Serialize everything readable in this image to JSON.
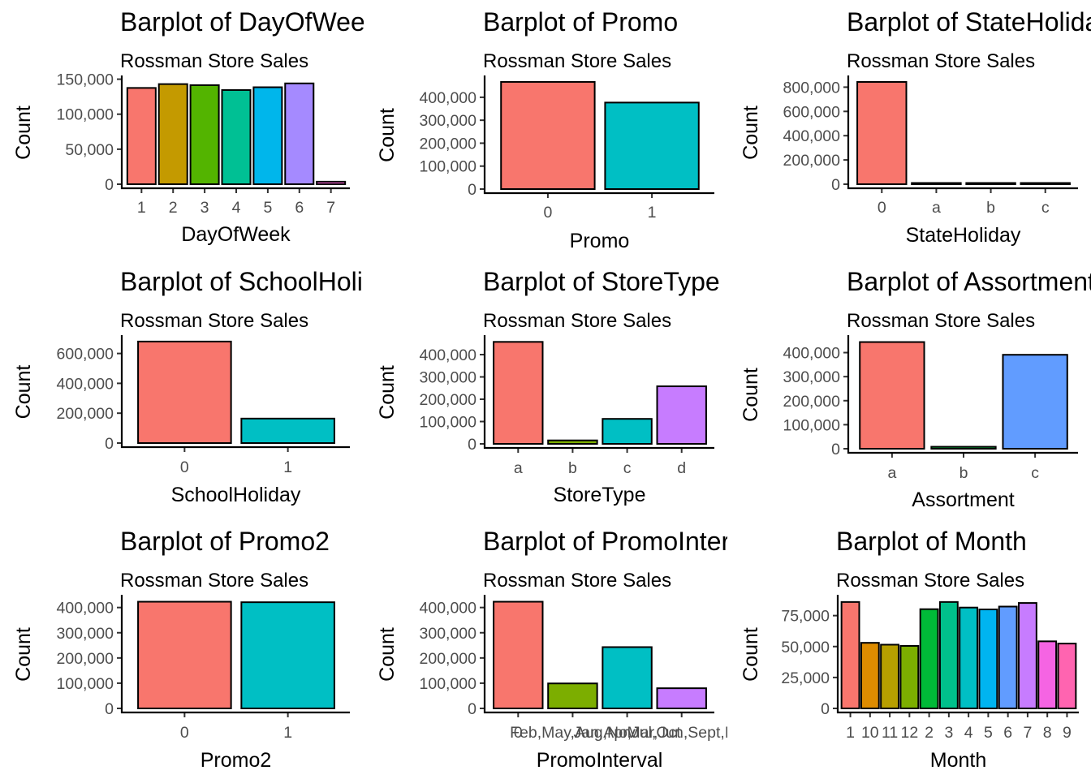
{
  "chart_data": [
    {
      "type": "bar",
      "title": "Barplot of DayOfWeek",
      "subtitle": "Rossman Store Sales",
      "xlabel": "DayOfWeek",
      "ylabel": "Count",
      "categories": [
        "1",
        "2",
        "3",
        "4",
        "5",
        "6",
        "7"
      ],
      "values": [
        137500,
        143000,
        141500,
        134500,
        138500,
        144000,
        3600
      ],
      "ylim": [
        0,
        153000
      ],
      "yticks": [
        0,
        50000,
        100000,
        150000
      ],
      "colors": [
        "#F8766D",
        "#C49A00",
        "#53B400",
        "#00C094",
        "#00B6EB",
        "#A58AFF",
        "#FB61D7"
      ],
      "grid": false,
      "legend": "none"
    },
    {
      "type": "bar",
      "title": "Barplot of Promo",
      "subtitle": "Rossman Store Sales",
      "xlabel": "Promo",
      "ylabel": "Count",
      "categories": [
        "0",
        "1"
      ],
      "values": [
        467000,
        377000
      ],
      "ylim": [
        0,
        488000
      ],
      "yticks": [
        0,
        100000,
        200000,
        300000,
        400000
      ],
      "colors": [
        "#F8766D",
        "#00BFC4"
      ],
      "grid": false,
      "legend": "none"
    },
    {
      "type": "bar",
      "title": "Barplot of StateHoliday",
      "subtitle": "Rossman Store Sales",
      "xlabel": "StateHoliday",
      "ylabel": "Count",
      "categories": [
        "0",
        "a",
        "b",
        "c"
      ],
      "values": [
        843000,
        700,
        150,
        70
      ],
      "ylim": [
        0,
        883000
      ],
      "yticks": [
        0,
        200000,
        400000,
        600000,
        800000
      ],
      "colors": [
        "#F8766D",
        "#7CAE00",
        "#00BFC4",
        "#C77CFF"
      ],
      "grid": false,
      "legend": "none"
    },
    {
      "type": "bar",
      "title": "Barplot of SchoolHoliday",
      "subtitle": "Rossman Store Sales",
      "xlabel": "SchoolHoliday",
      "ylabel": "Count",
      "categories": [
        "0",
        "1"
      ],
      "values": [
        680000,
        164000
      ],
      "ylim": [
        0,
        712000
      ],
      "yticks": [
        0,
        200000,
        400000,
        600000
      ],
      "colors": [
        "#F8766D",
        "#00BFC4"
      ],
      "grid": false,
      "legend": "none"
    },
    {
      "type": "bar",
      "title": "Barplot of StoreType",
      "subtitle": "Rossman Store Sales",
      "xlabel": "StoreType",
      "ylabel": "Count",
      "categories": [
        "a",
        "b",
        "c",
        "d"
      ],
      "values": [
        457000,
        15600,
        112000,
        258000
      ],
      "ylim": [
        0,
        480000
      ],
      "yticks": [
        0,
        100000,
        200000,
        300000,
        400000
      ],
      "colors": [
        "#F8766D",
        "#7CAE00",
        "#00BFC4",
        "#C77CFF"
      ],
      "grid": false,
      "legend": "none"
    },
    {
      "type": "bar",
      "title": "Barplot of Assortment",
      "subtitle": "Rossman Store Sales",
      "xlabel": "Assortment",
      "ylabel": "Count",
      "categories": [
        "a",
        "b",
        "c"
      ],
      "values": [
        444000,
        8200,
        391000
      ],
      "ylim": [
        0,
        466000
      ],
      "yticks": [
        0,
        100000,
        200000,
        300000,
        400000
      ],
      "colors": [
        "#F8766D",
        "#00BA38",
        "#619CFF"
      ],
      "grid": false,
      "legend": "none"
    },
    {
      "type": "bar",
      "title": "Barplot of Promo2",
      "subtitle": "Rossman Store Sales",
      "xlabel": "Promo2",
      "ylabel": "Count",
      "categories": [
        "0",
        "1"
      ],
      "values": [
        423000,
        421000
      ],
      "ylim": [
        0,
        444000
      ],
      "yticks": [
        0,
        100000,
        200000,
        300000,
        400000
      ],
      "colors": [
        "#F8766D",
        "#00BFC4"
      ],
      "grid": false,
      "legend": "none"
    },
    {
      "type": "bar",
      "title": "Barplot of PromoInterval",
      "subtitle": "Rossman Store Sales",
      "xlabel": "PromoInterval",
      "ylabel": "Count",
      "categories": [
        "0",
        "Feb,May,Aug,Nov",
        "Jan,Apr,Jul,Oct",
        "Mar,Jun,Sept,Dec"
      ],
      "tick_labels_shown": [
        "0",
        "Feb,May,Aug,Nov",
        "Jan,Apr,Jul,Oct",
        "Mar,Jun,Sept,D"
      ],
      "values": [
        423000,
        99000,
        243000,
        80000
      ],
      "ylim": [
        0,
        444000
      ],
      "yticks": [
        0,
        100000,
        200000,
        300000,
        400000
      ],
      "colors": [
        "#F8766D",
        "#7CAE00",
        "#00BFC4",
        "#C77CFF"
      ],
      "grid": false,
      "legend": "none"
    },
    {
      "type": "bar",
      "title": "Barplot of Month",
      "subtitle": "Rossman Store Sales",
      "xlabel": "Month",
      "ylabel": "Count",
      "categories": [
        "1",
        "10",
        "11",
        "12",
        "2",
        "3",
        "4",
        "5",
        "6",
        "7",
        "8",
        "9"
      ],
      "values": [
        86000,
        53000,
        51500,
        50500,
        80200,
        86000,
        81500,
        80000,
        82300,
        85200,
        54200,
        52400
      ],
      "ylim": [
        0,
        90500
      ],
      "yticks": [
        0,
        25000,
        50000,
        75000
      ],
      "colors": [
        "#F8766D",
        "#DE8C00",
        "#B79F00",
        "#7CAE00",
        "#00BA38",
        "#00C08B",
        "#00BFC4",
        "#00B4F0",
        "#619CFF",
        "#C77CFF",
        "#F564E3",
        "#FF64B0"
      ],
      "grid": false,
      "legend": "none"
    }
  ]
}
